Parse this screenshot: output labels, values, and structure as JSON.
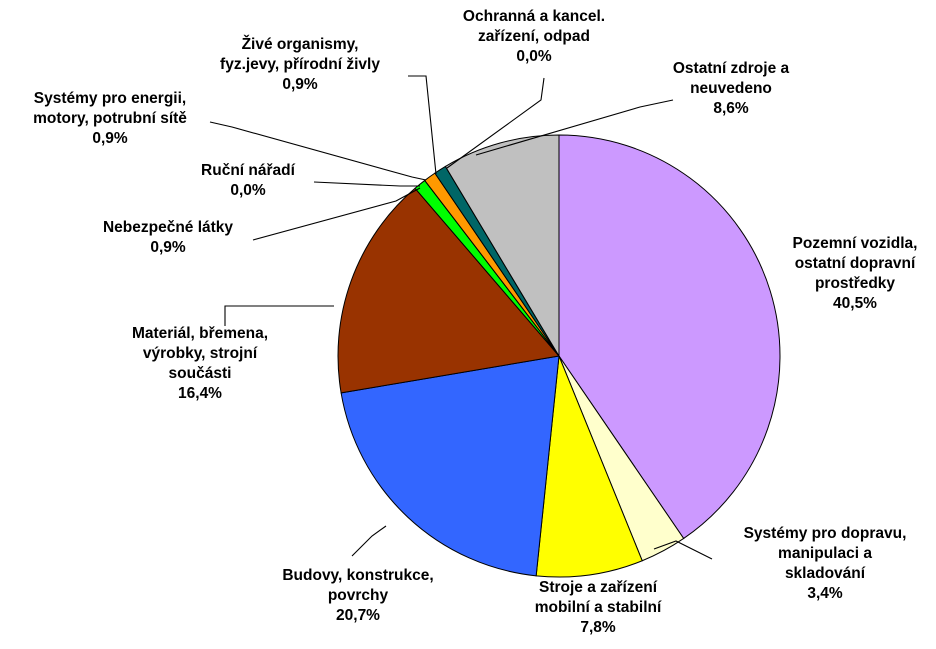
{
  "chart_data": {
    "type": "pie",
    "title": "",
    "start": "top",
    "direction": "clockwise",
    "legend": "none",
    "slices": [
      {
        "lines": [
          "Pozemní vozidla,",
          "ostatní dopravní",
          "prostředky"
        ],
        "value_label": "40,5%",
        "value": 40.5,
        "color": "#CC99FF"
      },
      {
        "lines": [
          "Systémy pro dopravu,",
          "manipulaci a",
          "skladování"
        ],
        "value_label": "3,4%",
        "value": 3.4,
        "color": "#FFFFCC"
      },
      {
        "lines": [
          "Stroje a zařízení",
          "mobilní a stabilní"
        ],
        "value_label": "7,8%",
        "value": 7.8,
        "color": "#FFFF00"
      },
      {
        "lines": [
          "Budovy, konstrukce,",
          "povrchy"
        ],
        "value_label": "20,7%",
        "value": 20.7,
        "color": "#3366FF"
      },
      {
        "lines": [
          "Materiál, břemena,",
          "výrobky, strojní",
          "součásti"
        ],
        "value_label": "16,4%",
        "value": 16.4,
        "color": "#993300"
      },
      {
        "lines": [
          "Nebezpečné látky"
        ],
        "value_label": "0,9%",
        "value": 0.9,
        "color": "#00FF00"
      },
      {
        "lines": [
          "Ruční nářadí"
        ],
        "value_label": "0,0%",
        "value": 0.0,
        "color": "#339966"
      },
      {
        "lines": [
          "Systémy pro energii,",
          "motory, potrubní sítě"
        ],
        "value_label": "0,9%",
        "value": 0.9,
        "color": "#FF9900"
      },
      {
        "lines": [
          "Živé organismy,",
          "fyz.jevy, přírodní živly"
        ],
        "value_label": "0,9%",
        "value": 0.9,
        "color": "#006666"
      },
      {
        "lines": [
          "Ochranná a kancel.",
          "zařízení, odpad"
        ],
        "value_label": "0,0%",
        "value": 0.0,
        "color": "#000080"
      },
      {
        "lines": [
          "Ostatní zdroje a",
          "neuvedeno"
        ],
        "value_label": "8,6%",
        "value": 8.6,
        "color": "#C0C0C0"
      }
    ]
  }
}
